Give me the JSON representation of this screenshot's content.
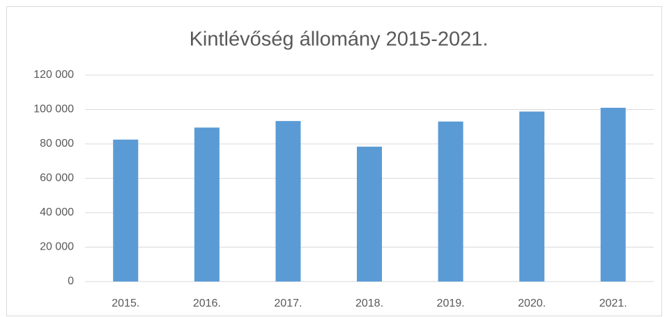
{
  "chart_data": {
    "type": "bar",
    "title": "Kintlévőség állomány 2015-2021.",
    "categories": [
      "2015.",
      "2016.",
      "2017.",
      "2018.",
      "2019.",
      "2020.",
      "2021."
    ],
    "values": [
      82500,
      89500,
      93300,
      78400,
      93000,
      98800,
      101000
    ],
    "color": "#5b9bd5",
    "ylim": [
      0,
      120000
    ],
    "yticks": [
      0,
      {
        "value": 20000,
        "label": "20 000"
      },
      {
        "value": 40000,
        "label": "40 000"
      },
      {
        "value": 60000,
        "label": "60 000"
      },
      {
        "value": 80000,
        "label": "80 000"
      },
      {
        "value": 100000,
        "label": "100 000"
      },
      {
        "value": 120000,
        "label": "120 000"
      }
    ],
    "grid": true
  }
}
